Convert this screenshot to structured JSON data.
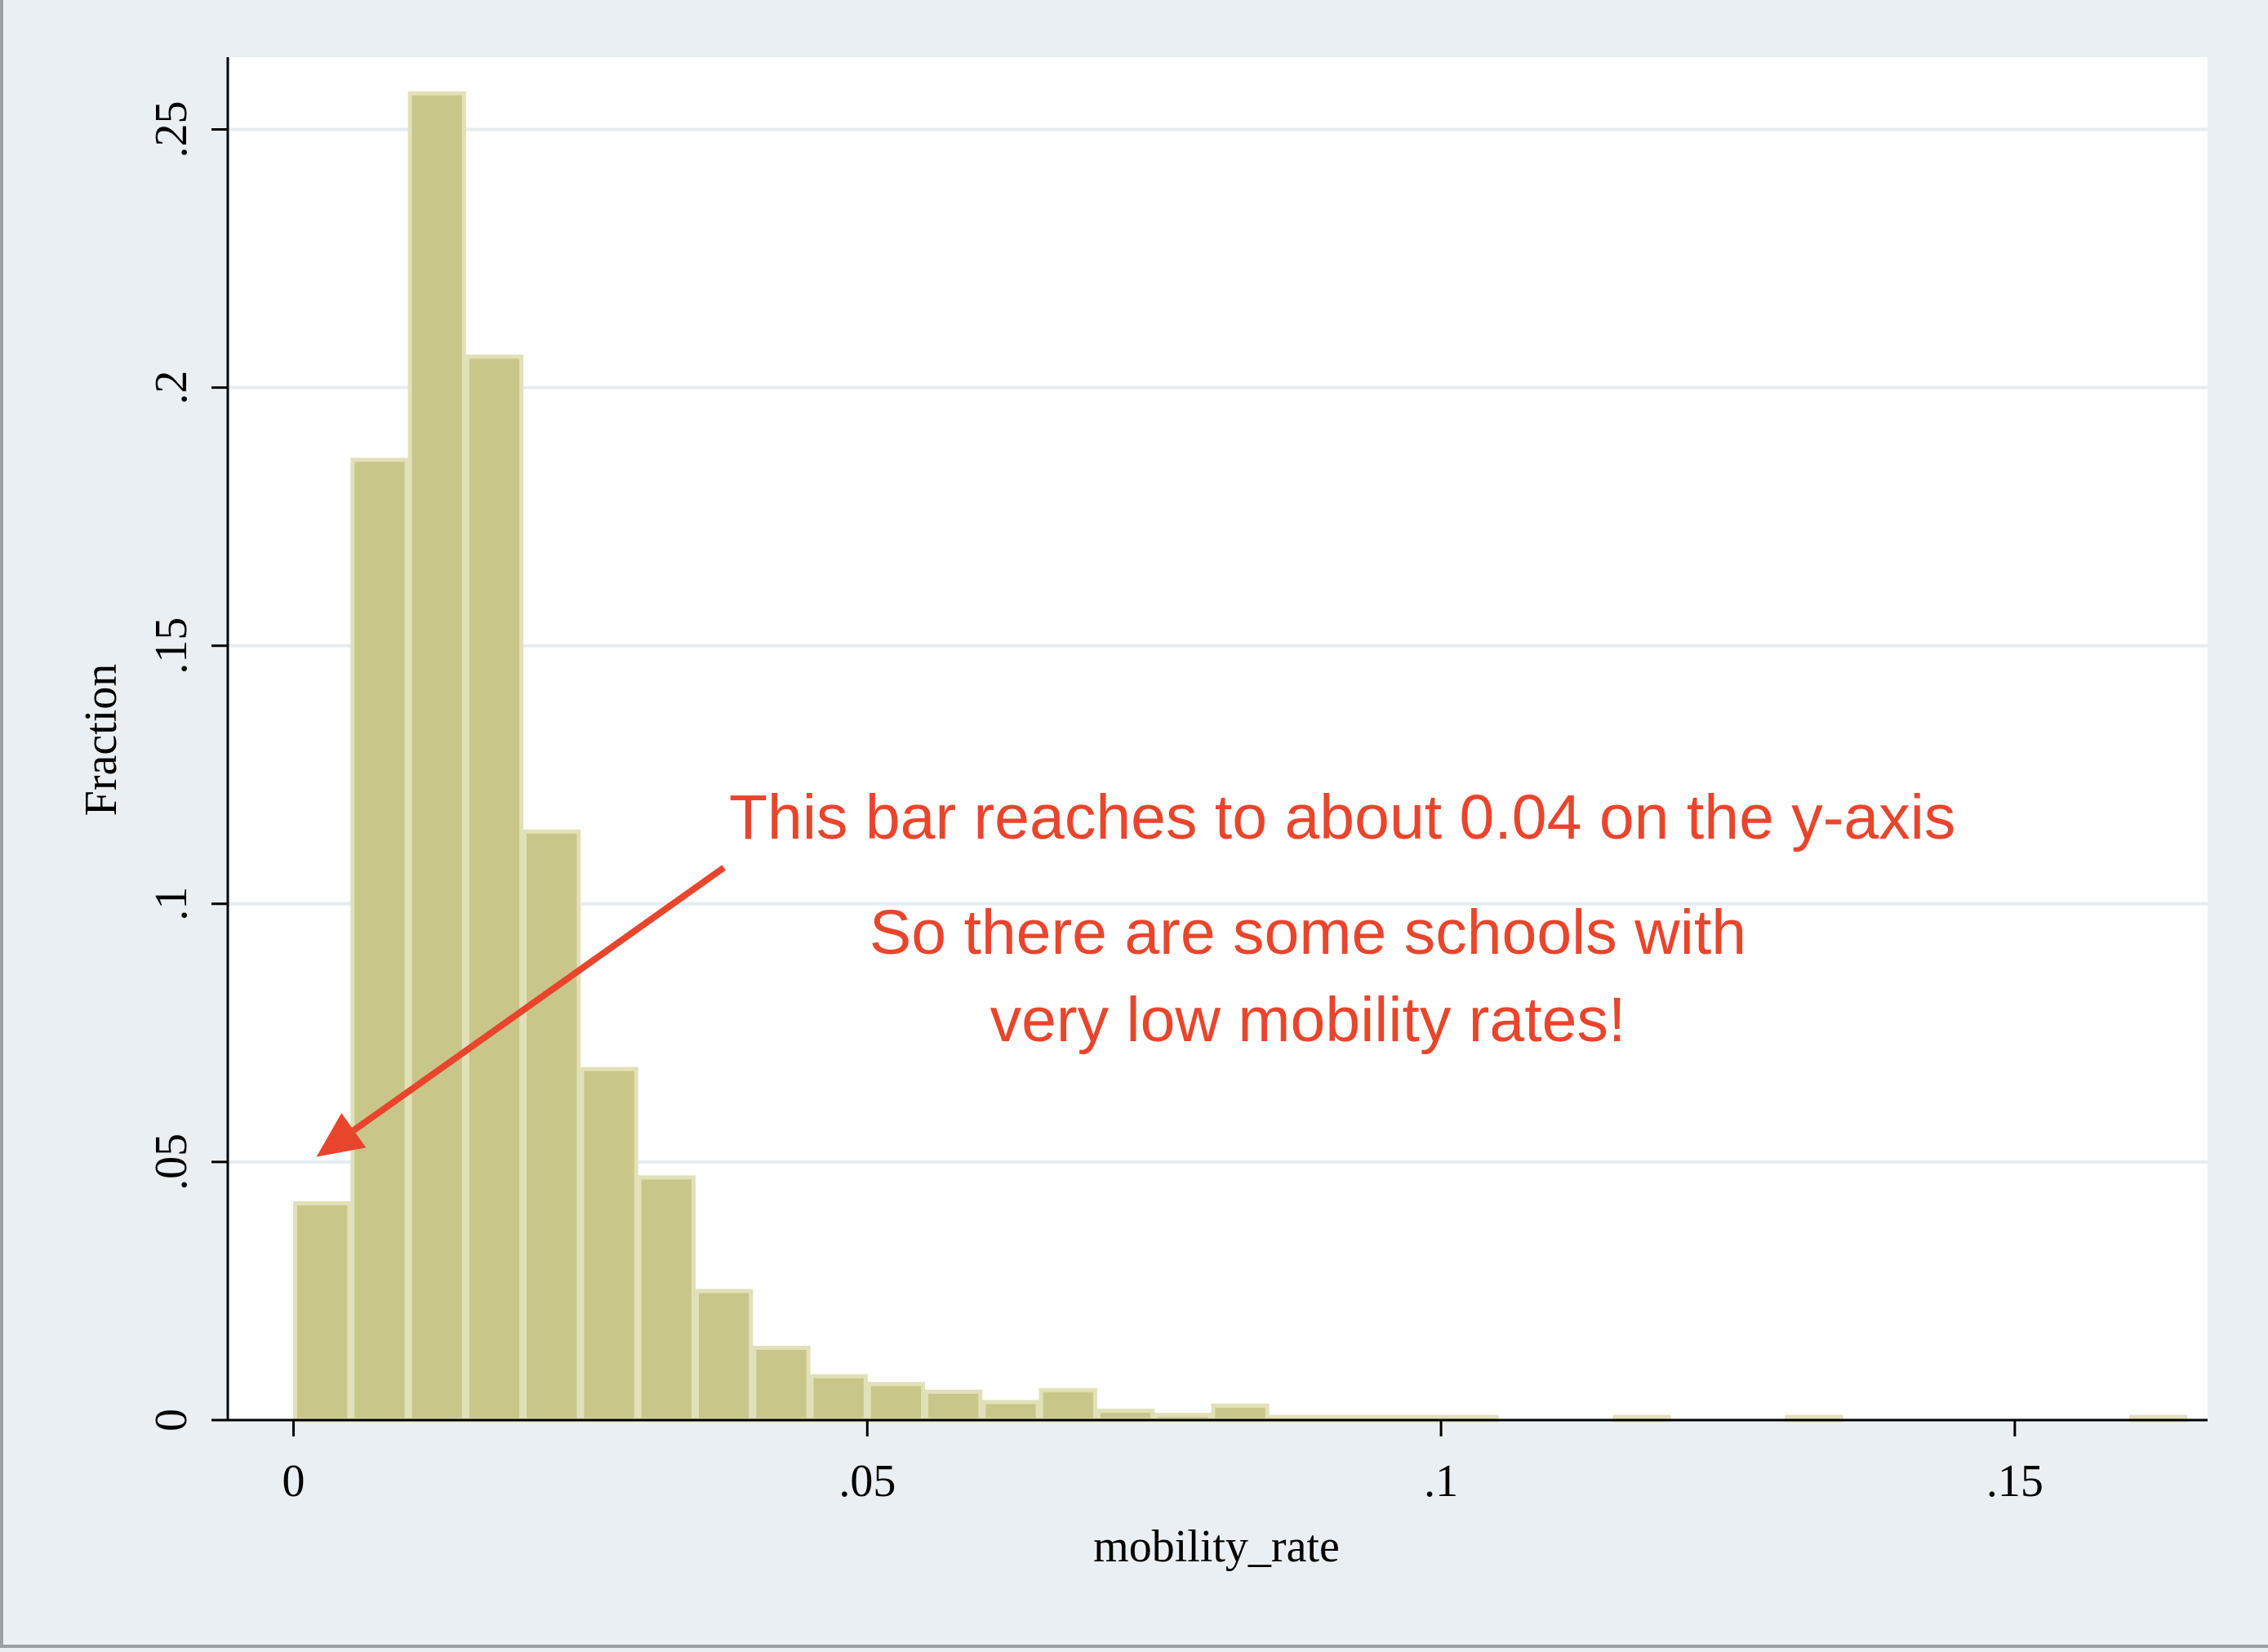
{
  "chart_data": {
    "type": "bar",
    "subtype": "histogram",
    "xlabel": "mobility_rate",
    "ylabel": "Fraction",
    "xlim": [
      -0.00573,
      0.1668
    ],
    "ylim": [
      0,
      0.264
    ],
    "x_ticks": [
      {
        "value": 0,
        "label": "0"
      },
      {
        "value": 0.05,
        "label": ".05"
      },
      {
        "value": 0.1,
        "label": ".1"
      },
      {
        "value": 0.15,
        "label": ".15"
      }
    ],
    "y_ticks": [
      {
        "value": 0,
        "label": "0"
      },
      {
        "value": 0.05,
        "label": ".05"
      },
      {
        "value": 0.1,
        "label": ".1"
      },
      {
        "value": 0.15,
        "label": ".15"
      },
      {
        "value": 0.2,
        "label": ".2"
      },
      {
        "value": 0.25,
        "label": ".25"
      }
    ],
    "grid": true,
    "bin_width": 0.005,
    "bins": [
      {
        "x0": 0.0,
        "x1": 0.005,
        "value": 0.042
      },
      {
        "x0": 0.005,
        "x1": 0.01,
        "value": 0.186
      },
      {
        "x0": 0.01,
        "x1": 0.015,
        "value": 0.257
      },
      {
        "x0": 0.015,
        "x1": 0.02,
        "value": 0.206
      },
      {
        "x0": 0.02,
        "x1": 0.025,
        "value": 0.114
      },
      {
        "x0": 0.025,
        "x1": 0.03,
        "value": 0.068
      },
      {
        "x0": 0.03,
        "x1": 0.035,
        "value": 0.047
      },
      {
        "x0": 0.035,
        "x1": 0.04,
        "value": 0.025
      },
      {
        "x0": 0.04,
        "x1": 0.045,
        "value": 0.014
      },
      {
        "x0": 0.045,
        "x1": 0.05,
        "value": 0.0085
      },
      {
        "x0": 0.05,
        "x1": 0.055,
        "value": 0.007
      },
      {
        "x0": 0.055,
        "x1": 0.06,
        "value": 0.0055
      },
      {
        "x0": 0.06,
        "x1": 0.065,
        "value": 0.0035
      },
      {
        "x0": 0.065,
        "x1": 0.07,
        "value": 0.0058
      },
      {
        "x0": 0.07,
        "x1": 0.075,
        "value": 0.0018
      },
      {
        "x0": 0.075,
        "x1": 0.08,
        "value": 0.001
      },
      {
        "x0": 0.08,
        "x1": 0.085,
        "value": 0.0028
      },
      {
        "x0": 0.085,
        "x1": 0.09,
        "value": 0.0006
      },
      {
        "x0": 0.09,
        "x1": 0.095,
        "value": 0.0006
      },
      {
        "x0": 0.095,
        "x1": 0.1,
        "value": 0.0006
      },
      {
        "x0": 0.1,
        "x1": 0.105,
        "value": 0.0006
      },
      {
        "x0": 0.115,
        "x1": 0.12,
        "value": 0.0006
      },
      {
        "x0": 0.13,
        "x1": 0.135,
        "value": 0.0006
      },
      {
        "x0": 0.16,
        "x1": 0.165,
        "value": 0.0006
      }
    ],
    "bar_color": "#c9c68a",
    "bar_edge_color": "#e2e0b8",
    "background_color": "#e9eff2",
    "plot_background_color": "#ffffff",
    "grid_color": "#e6ecef",
    "annotations": [
      {
        "text": "This bar reaches to about 0.04 on the y-axis",
        "color": "#e8452c"
      },
      {
        "text": "So there are some schools with",
        "color": "#e8452c"
      },
      {
        "text": "very low mobility rates!",
        "color": "#e8452c"
      }
    ],
    "arrow": {
      "from": [
        0.0375,
        0.107
      ],
      "to": [
        0.002,
        0.051
      ],
      "color": "#e8452c"
    }
  }
}
